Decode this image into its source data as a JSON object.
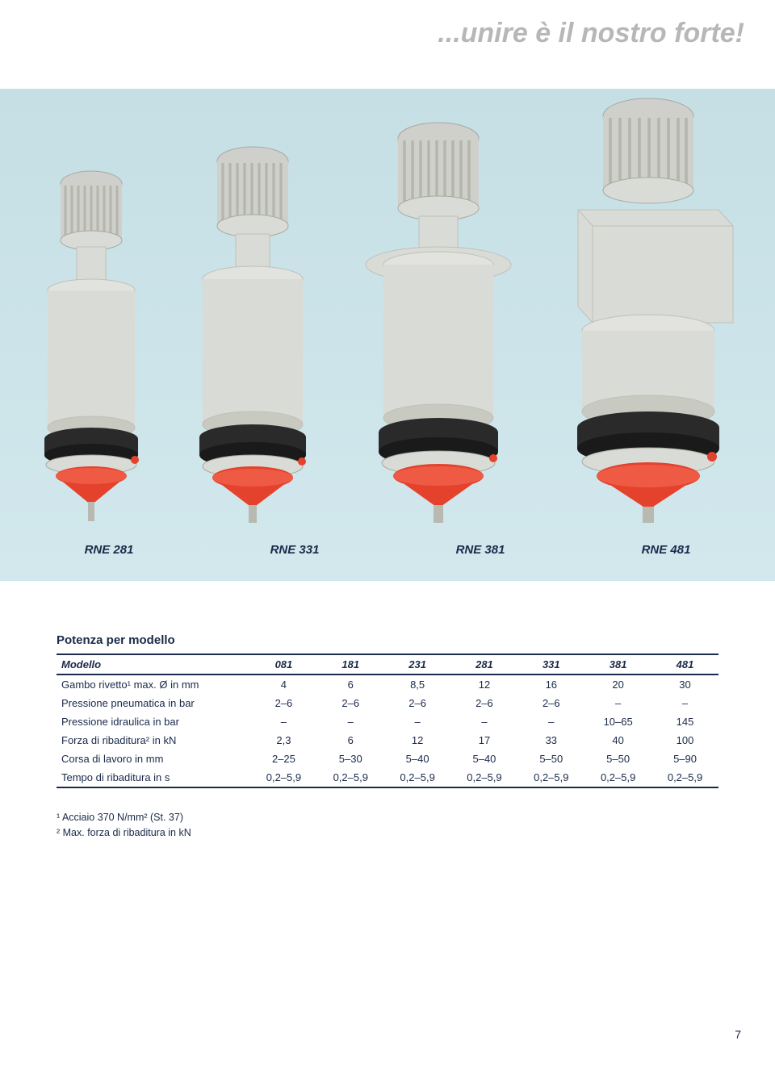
{
  "tagline": "...unire è il nostro forte!",
  "product_labels": [
    "RNE 281",
    "RNE 331",
    "RNE 381",
    "RNE 481"
  ],
  "section_title": "Potenza per modello",
  "table": {
    "header": [
      "Modello",
      "081",
      "181",
      "231",
      "281",
      "331",
      "381",
      "481"
    ],
    "rows": [
      [
        "Gambo rivetto¹ max. Ø in mm",
        "4",
        "6",
        "8,5",
        "12",
        "16",
        "20",
        "30"
      ],
      [
        "Pressione pneumatica in bar",
        "2–6",
        "2–6",
        "2–6",
        "2–6",
        "2–6",
        "–",
        "–"
      ],
      [
        "Pressione idraulica in bar",
        "–",
        "–",
        "–",
        "–",
        "–",
        "10–65",
        "145"
      ],
      [
        "Forza di ribaditura² in kN",
        "2,3",
        "6",
        "12",
        "17",
        "33",
        "40",
        "100"
      ],
      [
        "Corsa di lavoro in mm",
        "2–25",
        "5–30",
        "5–40",
        "5–40",
        "5–50",
        "5–50",
        "5–90"
      ],
      [
        "Tempo di ribaditura in s",
        "0,2–5,9",
        "0,2–5,9",
        "0,2–5,9",
        "0,2–5,9",
        "0,2–5,9",
        "0,2–5,9",
        "0,2–5,9"
      ]
    ]
  },
  "footnotes": [
    "¹ Acciaio 370 N/mm² (St. 37)",
    "² Max. forza di ribaditura in kN"
  ],
  "page_number": "7",
  "colors": {
    "text": "#1a2a4a",
    "tagline": "#b6b7b9",
    "hero_bg": "#c5dfe5",
    "machine_body": "#d9dbd6",
    "machine_dark": "#2a2a2a",
    "machine_red": "#e4422c",
    "machine_fins": "#cfd0cb"
  }
}
